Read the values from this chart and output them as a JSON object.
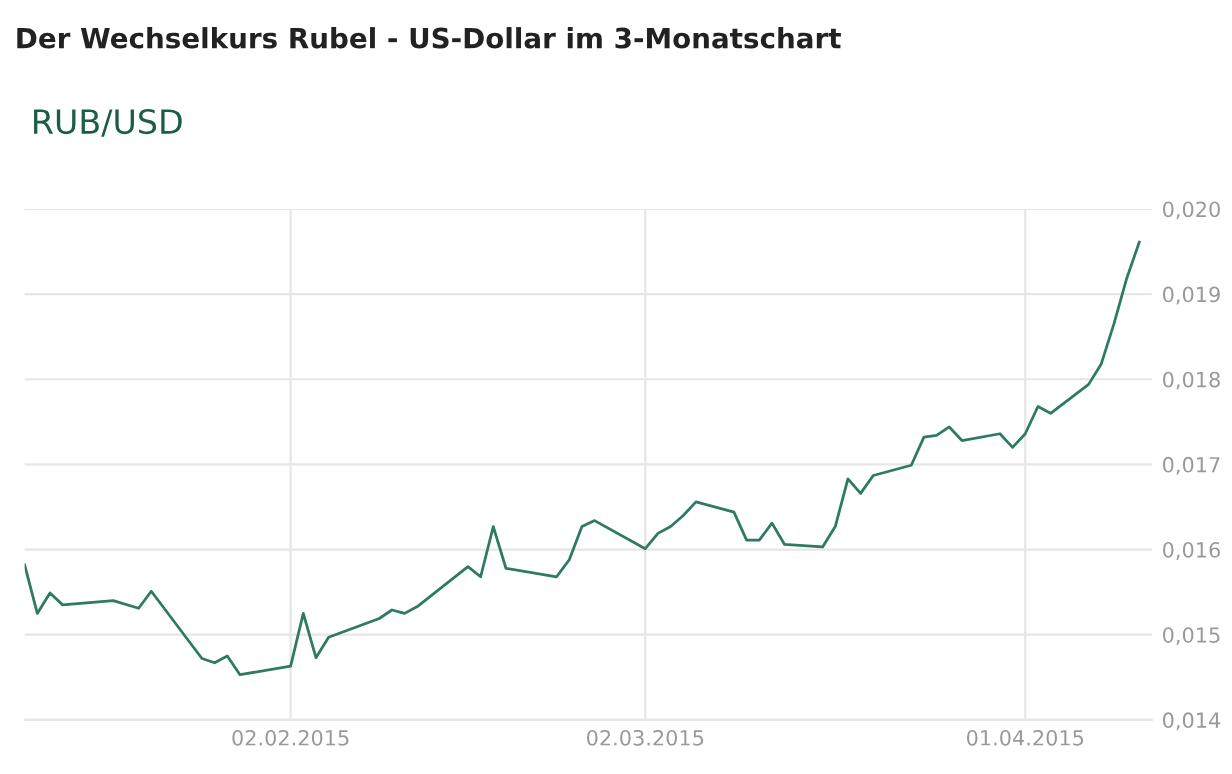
{
  "chart_data": {
    "type": "line",
    "title": "Der Wechselkurs Rubel - US-Dollar im 3-Monatschart",
    "subtitle": "RUB/USD",
    "x": [
      "2015-01-12",
      "2015-01-13",
      "2015-01-14",
      "2015-01-15",
      "2015-01-19",
      "2015-01-21",
      "2015-01-22",
      "2015-01-26",
      "2015-01-27",
      "2015-01-28",
      "2015-01-29",
      "2015-02-02",
      "2015-02-03",
      "2015-02-04",
      "2015-02-05",
      "2015-02-09",
      "2015-02-10",
      "2015-02-11",
      "2015-02-12",
      "2015-02-16",
      "2015-02-17",
      "2015-02-18",
      "2015-02-19",
      "2015-02-23",
      "2015-02-24",
      "2015-02-25",
      "2015-02-26",
      "2015-03-02",
      "2015-03-03",
      "2015-03-04",
      "2015-03-05",
      "2015-03-06",
      "2015-03-09",
      "2015-03-10",
      "2015-03-11",
      "2015-03-12",
      "2015-03-13",
      "2015-03-16",
      "2015-03-17",
      "2015-03-18",
      "2015-03-19",
      "2015-03-20",
      "2015-03-23",
      "2015-03-24",
      "2015-03-25",
      "2015-03-26",
      "2015-03-27",
      "2015-03-30",
      "2015-03-31",
      "2015-04-01",
      "2015-04-02",
      "2015-04-03",
      "2015-04-06",
      "2015-04-07",
      "2015-04-08",
      "2015-04-09",
      "2015-04-10"
    ],
    "series": [
      {
        "color": "#2e7a62",
        "values": [
          0.01582,
          0.01525,
          0.01549,
          0.01535,
          0.0154,
          0.01531,
          0.01551,
          0.01472,
          0.01467,
          0.01475,
          0.01453,
          0.01463,
          0.01525,
          0.01473,
          0.01497,
          0.01519,
          0.01529,
          0.01525,
          0.01533,
          0.0158,
          0.01568,
          0.01627,
          0.01578,
          0.01568,
          0.01588,
          0.01627,
          0.01634,
          0.01601,
          0.01619,
          0.01627,
          0.0164,
          0.01656,
          0.01644,
          0.01611,
          0.01611,
          0.01631,
          0.01606,
          0.01603,
          0.01627,
          0.01683,
          0.01666,
          0.01687,
          0.01699,
          0.01732,
          0.01734,
          0.01744,
          0.01728,
          0.01736,
          0.0172,
          0.01736,
          0.01768,
          0.0176,
          0.01794,
          0.01818,
          0.01865,
          0.01918,
          0.01961
        ]
      }
    ],
    "xlim": [
      "2015-01-12",
      "2015-04-11"
    ],
    "xticks": [
      {
        "value": "2015-02-02",
        "label": "02.02.2015"
      },
      {
        "value": "2015-03-02",
        "label": "02.03.2015"
      },
      {
        "value": "2015-04-01",
        "label": "01.04.2015"
      }
    ],
    "ylim": [
      0.014,
      0.02
    ],
    "yticks": [
      {
        "value": 0.014,
        "label": "0,014"
      },
      {
        "value": 0.015,
        "label": "0,015"
      },
      {
        "value": 0.016,
        "label": "0,016"
      },
      {
        "value": 0.017,
        "label": "0,017"
      },
      {
        "value": 0.018,
        "label": "0,018"
      },
      {
        "value": 0.019,
        "label": "0,019"
      },
      {
        "value": 0.02,
        "label": "0,020"
      }
    ],
    "grid": true,
    "legend": false,
    "marker": "none",
    "line_style": "solid"
  }
}
